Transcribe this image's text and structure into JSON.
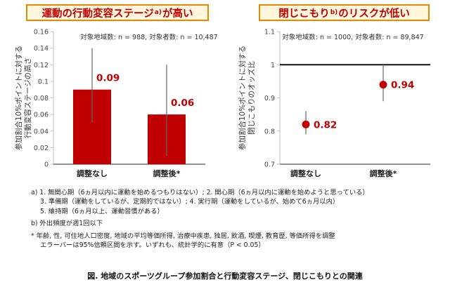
{
  "panels": {
    "left": {
      "title_main": "運動の行動変容ステージ",
      "title_sup": "a)",
      "title_tail": "が高い"
    },
    "right": {
      "title_main": "閉じこもり",
      "title_sup": "b)",
      "title_tail": "のリスクが低い"
    }
  },
  "chart_data": [
    {
      "type": "bar",
      "subtitle": "対象地域数: n = 988, 対象者数: n = 10,487",
      "ylabel": "参加割合10%ポイントに対する行動変容ステージの高さ",
      "ylabel_lines": [
        "参加割合10%ポイントに対する",
        "行動変容ステージの高さ"
      ],
      "ylim": [
        0,
        0.16
      ],
      "yticks": [
        "0",
        "0.02",
        "0.04",
        "0.06",
        "0.08",
        "0.1",
        "0.12",
        "0.14",
        "0.16"
      ],
      "categories": [
        "調整なし",
        "調整後*"
      ],
      "values": [
        0.09,
        0.06
      ],
      "value_labels": [
        "0.09",
        "0.06"
      ],
      "ci_low": [
        0.05,
        0.01
      ],
      "ci_high": [
        0.14,
        0.12
      ],
      "bar_color": "#c00000",
      "label_color": "#c00000"
    },
    {
      "type": "scatter",
      "subtitle": "対象地域数: n = 1000, 対象者数: n = 89,847",
      "ylabel": "参加割合10%ポイントに対する閉じこもりのオッズ比",
      "ylabel_lines": [
        "参加割合10%ポイントに対する",
        "閉じこもりのオッズ比"
      ],
      "ylim": [
        0.7,
        1.1
      ],
      "yticks": [
        "0.7",
        "0.8",
        "0.9",
        "1",
        "1.1"
      ],
      "reference_line": 1,
      "categories": [
        "調整なし",
        "調整後*"
      ],
      "values": [
        0.82,
        0.94
      ],
      "value_labels": [
        "0.82",
        "0.94"
      ],
      "ci_low": [
        0.79,
        0.89
      ],
      "ci_high": [
        0.86,
        1.0
      ],
      "point_color": "#c00000",
      "label_color": "#c00000"
    }
  ],
  "notes": {
    "a_line1": "a) 1. 無関心期（6ヵ月以内に運動を始めるつもりはない）; 2. 関心期（6ヵ月以内に運動を始めようと思っている）",
    "a_line2": "3. 準備期（運動をしているが、定期的ではない）; 4. 実行期（運動をしているが、始めて6ヵ月以内）",
    "a_line3": "5. 維持期（6ヵ月以上、運動習慣がある）",
    "b_line": "b) 外出頻度が週1回以下",
    "star_line1": "* 年齢, 性, 可住地人口密度, 地域の平均等価所得, 治療中疾患, 独居, 飲酒, 喫煙, 教育歴, 等価所得を調整",
    "star_line2": "エラーバーは95%信頼区間を示す。いずれも、統計学的に有意（P < 0.05）"
  },
  "caption": "図. 地域のスポーツグループ参加割合と行動変容ステージ、閉じこもりとの関連"
}
